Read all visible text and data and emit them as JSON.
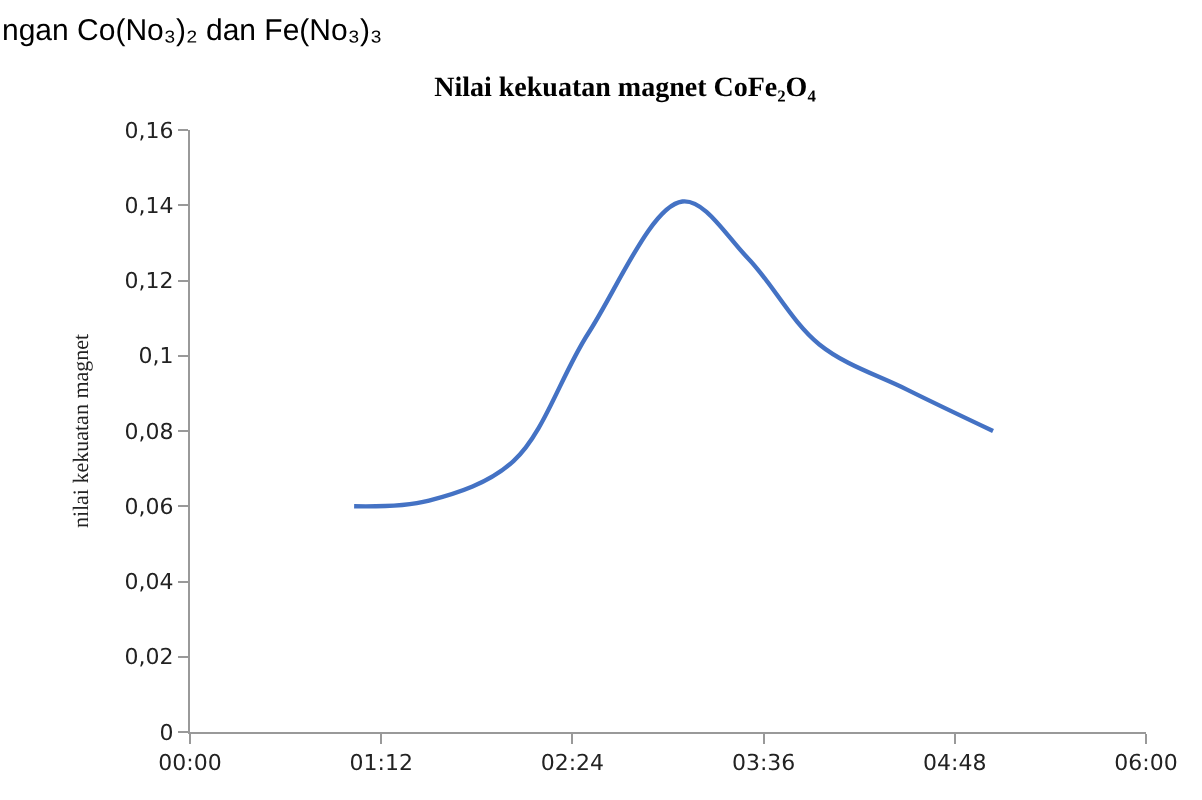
{
  "chart_data": {
    "type": "line",
    "title": "Nilai kekuatan magnet CoFe₂O₄",
    "ylabel": "nilai kekuatan magnet",
    "annotations": [
      "ngan Co(No₃)₂ dan Fe(No₃)₃"
    ],
    "x": [
      1.03,
      1.5,
      2.03,
      2.5,
      3.09,
      3.5,
      3.95,
      4.5,
      5.04
    ],
    "series": [
      {
        "color": "#4472c4",
        "values": [
          0.06,
          0.0615,
          0.072,
          0.106,
          0.141,
          0.126,
          0.103,
          0.091,
          0.08
        ]
      }
    ],
    "xlim": [
      0,
      6
    ],
    "xticks": [
      {
        "value": 0,
        "label": "00:00"
      },
      {
        "value": 1.2,
        "label": "01:12"
      },
      {
        "value": 2.4,
        "label": "02:24"
      },
      {
        "value": 3.6,
        "label": "03:36"
      },
      {
        "value": 4.8,
        "label": "04:48"
      },
      {
        "value": 6,
        "label": "06:00"
      }
    ],
    "ylim": [
      0,
      0.16
    ],
    "yticks": [
      {
        "value": 0,
        "label": "0"
      },
      {
        "value": 0.02,
        "label": "0,02"
      },
      {
        "value": 0.04,
        "label": "0,04"
      },
      {
        "value": 0.06,
        "label": "0,06"
      },
      {
        "value": 0.08,
        "label": "0,08"
      },
      {
        "value": 0.1,
        "label": "0,1"
      },
      {
        "value": 0.12,
        "label": "0,12"
      },
      {
        "value": 0.14,
        "label": "0,14"
      },
      {
        "value": 0.16,
        "label": "0,16"
      }
    ],
    "marker": "none",
    "line_style": "solid"
  }
}
